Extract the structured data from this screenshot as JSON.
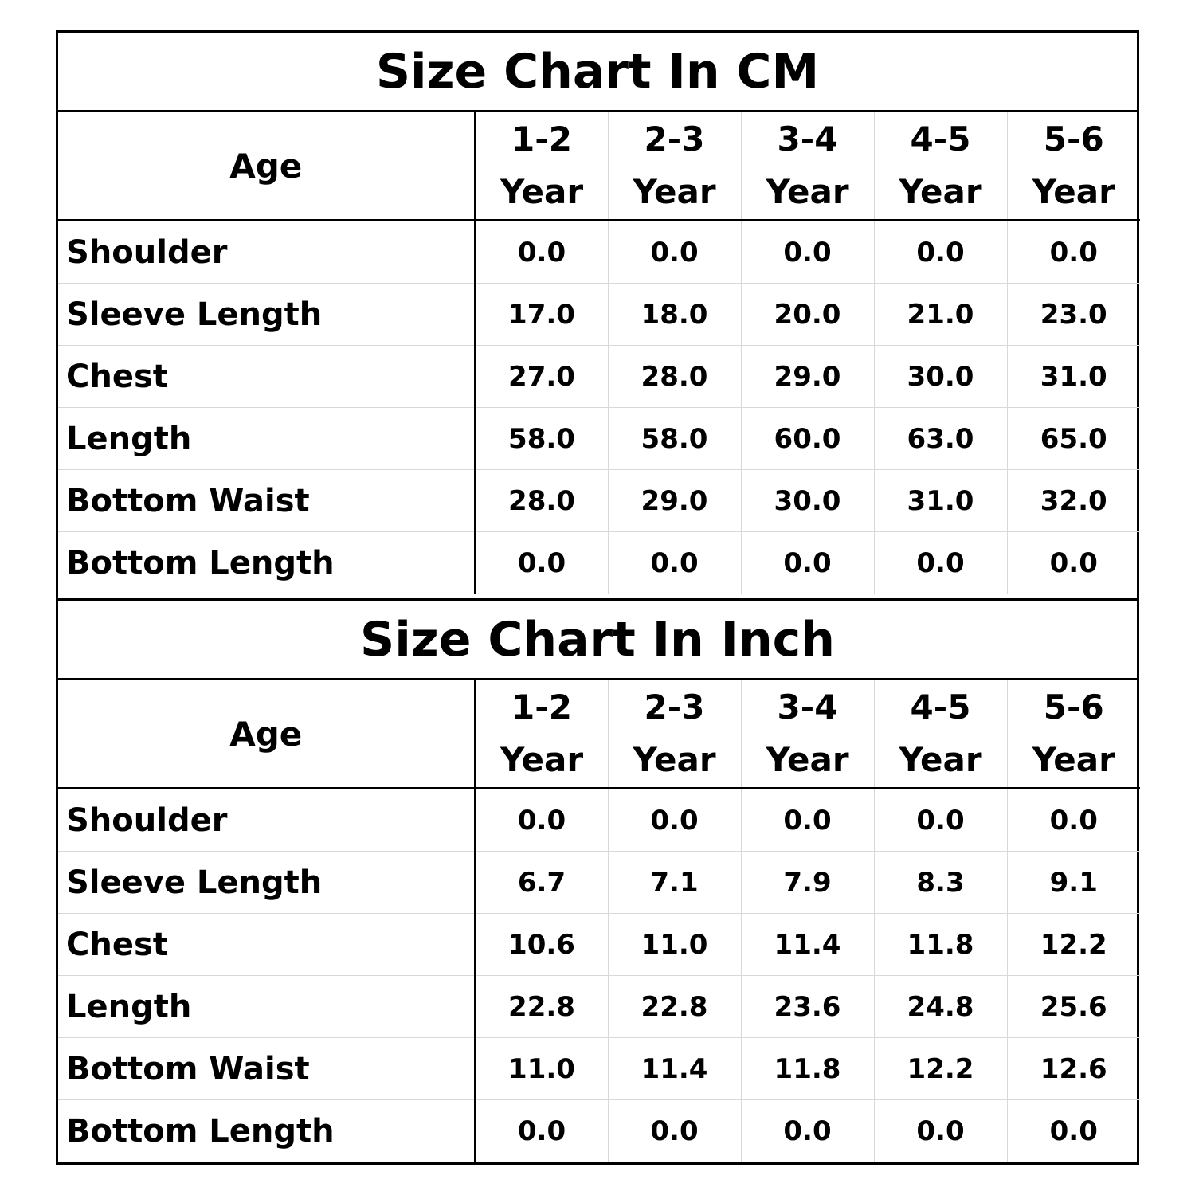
{
  "cm": {
    "title": "Size Chart In CM",
    "age_label": "Age",
    "columns": [
      {
        "range": "1-2",
        "unit": "Year"
      },
      {
        "range": "2-3",
        "unit": "Year"
      },
      {
        "range": "3-4",
        "unit": "Year"
      },
      {
        "range": "4-5",
        "unit": "Year"
      },
      {
        "range": "5-6",
        "unit": "Year"
      }
    ],
    "rows": [
      {
        "label": "Shoulder",
        "values": [
          "0.0",
          "0.0",
          "0.0",
          "0.0",
          "0.0"
        ]
      },
      {
        "label": "Sleeve Length",
        "values": [
          "17.0",
          "18.0",
          "20.0",
          "21.0",
          "23.0"
        ]
      },
      {
        "label": "Chest",
        "values": [
          "27.0",
          "28.0",
          "29.0",
          "30.0",
          "31.0"
        ]
      },
      {
        "label": "Length",
        "values": [
          "58.0",
          "58.0",
          "60.0",
          "63.0",
          "65.0"
        ]
      },
      {
        "label": "Bottom Waist",
        "values": [
          "28.0",
          "29.0",
          "30.0",
          "31.0",
          "32.0"
        ]
      },
      {
        "label": "Bottom Length",
        "values": [
          "0.0",
          "0.0",
          "0.0",
          "0.0",
          "0.0"
        ]
      }
    ]
  },
  "inch": {
    "title": "Size Chart In Inch",
    "age_label": "Age",
    "columns": [
      {
        "range": "1-2",
        "unit": "Year"
      },
      {
        "range": "2-3",
        "unit": "Year"
      },
      {
        "range": "3-4",
        "unit": "Year"
      },
      {
        "range": "4-5",
        "unit": "Year"
      },
      {
        "range": "5-6",
        "unit": "Year"
      }
    ],
    "rows": [
      {
        "label": "Shoulder",
        "values": [
          "0.0",
          "0.0",
          "0.0",
          "0.0",
          "0.0"
        ]
      },
      {
        "label": "Sleeve Length",
        "values": [
          "6.7",
          "7.1",
          "7.9",
          "8.3",
          "9.1"
        ]
      },
      {
        "label": "Chest",
        "values": [
          "10.6",
          "11.0",
          "11.4",
          "11.8",
          "12.2"
        ]
      },
      {
        "label": "Length",
        "values": [
          "22.8",
          "22.8",
          "23.6",
          "24.8",
          "25.6"
        ]
      },
      {
        "label": "Bottom Waist",
        "values": [
          "11.0",
          "11.4",
          "11.8",
          "12.2",
          "12.6"
        ]
      },
      {
        "label": "Bottom Length",
        "values": [
          "0.0",
          "0.0",
          "0.0",
          "0.0",
          "0.0"
        ]
      }
    ]
  }
}
